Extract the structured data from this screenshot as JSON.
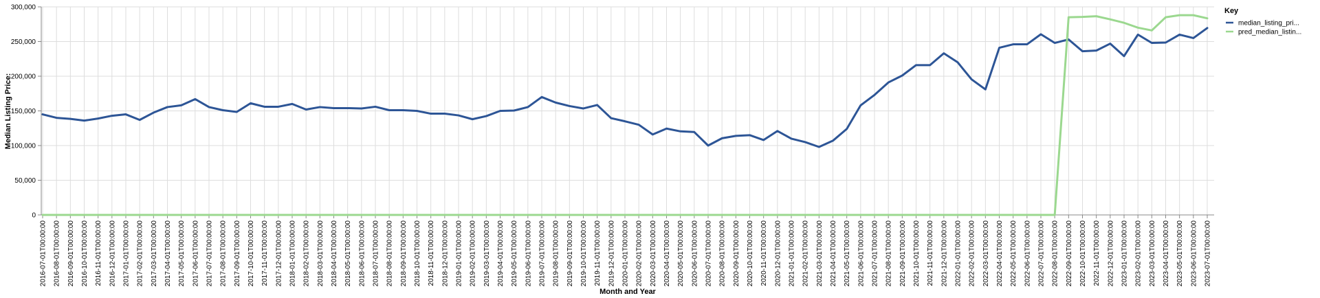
{
  "chart_data": {
    "type": "line",
    "xlabel": "Month and Year",
    "ylabel": "Median Listing Price:",
    "ylim": [
      0,
      300000
    ],
    "y_ticks": [
      "0",
      "50,000",
      "100,000",
      "150,000",
      "200,000",
      "250,000",
      "300,000"
    ],
    "grid": true,
    "legend": {
      "title": "Key",
      "placement": "right"
    },
    "x": [
      "2016-07-01T00:00:00",
      "2016-08-01T00:00:00",
      "2016-09-01T00:00:00",
      "2016-10-01T00:00:00",
      "2016-11-01T00:00:00",
      "2016-12-01T00:00:00",
      "2017-01-01T00:00:00",
      "2017-02-01T00:00:00",
      "2017-03-01T00:00:00",
      "2017-04-01T00:00:00",
      "2017-05-01T00:00:00",
      "2017-06-01T00:00:00",
      "2017-07-01T00:00:00",
      "2017-08-01T00:00:00",
      "2017-09-01T00:00:00",
      "2017-10-01T00:00:00",
      "2017-11-01T00:00:00",
      "2017-12-01T00:00:00",
      "2018-01-01T00:00:00",
      "2018-02-01T00:00:00",
      "2018-03-01T00:00:00",
      "2018-04-01T00:00:00",
      "2018-05-01T00:00:00",
      "2018-06-01T00:00:00",
      "2018-07-01T00:00:00",
      "2018-08-01T00:00:00",
      "2018-09-01T00:00:00",
      "2018-10-01T00:00:00",
      "2018-11-01T00:00:00",
      "2018-12-01T00:00:00",
      "2019-01-01T00:00:00",
      "2019-02-01T00:00:00",
      "2019-03-01T00:00:00",
      "2019-04-01T00:00:00",
      "2019-05-01T00:00:00",
      "2019-06-01T00:00:00",
      "2019-07-01T00:00:00",
      "2019-08-01T00:00:00",
      "2019-09-01T00:00:00",
      "2019-10-01T00:00:00",
      "2019-11-01T00:00:00",
      "2019-12-01T00:00:00",
      "2020-01-01T00:00:00",
      "2020-02-01T00:00:00",
      "2020-03-01T00:00:00",
      "2020-04-01T00:00:00",
      "2020-05-01T00:00:00",
      "2020-06-01T00:00:00",
      "2020-07-01T00:00:00",
      "2020-08-01T00:00:00",
      "2020-09-01T00:00:00",
      "2020-10-01T00:00:00",
      "2020-11-01T00:00:00",
      "2020-12-01T00:00:00",
      "2021-01-01T00:00:00",
      "2021-02-01T00:00:00",
      "2021-03-01T00:00:00",
      "2021-04-01T00:00:00",
      "2021-05-01T00:00:00",
      "2021-06-01T00:00:00",
      "2021-07-01T00:00:00",
      "2021-08-01T00:00:00",
      "2021-09-01T00:00:00",
      "2021-10-01T00:00:00",
      "2021-11-01T00:00:00",
      "2021-12-01T00:00:00",
      "2022-01-01T00:00:00",
      "2022-02-01T00:00:00",
      "2022-03-01T00:00:00",
      "2022-04-01T00:00:00",
      "2022-05-01T00:00:00",
      "2022-06-01T00:00:00",
      "2022-07-01T00:00:00",
      "2022-08-01T00:00:00",
      "2022-09-01T00:00:00",
      "2022-10-01T00:00:00",
      "2022-11-01T00:00:00",
      "2022-12-01T00:00:00",
      "2023-01-01T00:00:00",
      "2023-02-01T00:00:00",
      "2023-03-01T00:00:00",
      "2023-04-01T00:00:00",
      "2023-05-01T00:00:00",
      "2023-06-01T00:00:00",
      "2023-07-01T00:00:00"
    ],
    "series": [
      {
        "name": "median_listing_pri...",
        "color": "#2d5596",
        "values": [
          145000,
          140000,
          138500,
          136000,
          139000,
          143000,
          145000,
          137000,
          147500,
          155500,
          158000,
          167000,
          155500,
          151000,
          148500,
          161000,
          156000,
          156000,
          160000,
          152000,
          155500,
          154000,
          154000,
          153500,
          156000,
          151000,
          151000,
          150000,
          146000,
          146000,
          143500,
          138000,
          142500,
          150000,
          150500,
          155500,
          170000,
          162000,
          157000,
          153500,
          158500,
          139500,
          135000,
          130000,
          116000,
          124500,
          120500,
          119500,
          100000,
          110500,
          114000,
          115000,
          108000,
          121000,
          110000,
          105000,
          98000,
          107000,
          124000,
          158000,
          173000,
          191000,
          201000,
          216000,
          216000,
          233000,
          220000,
          195500,
          181000,
          241000,
          246000,
          246000,
          260500,
          248000,
          253000,
          236000,
          237000,
          247000,
          229000,
          260000,
          248000,
          248500,
          260000,
          255000,
          269500
        ]
      },
      {
        "name": "pred_median_listin...",
        "color": "#9bd88f",
        "values": [
          0,
          0,
          0,
          0,
          0,
          0,
          0,
          0,
          0,
          0,
          0,
          0,
          0,
          0,
          0,
          0,
          0,
          0,
          0,
          0,
          0,
          0,
          0,
          0,
          0,
          0,
          0,
          0,
          0,
          0,
          0,
          0,
          0,
          0,
          0,
          0,
          0,
          0,
          0,
          0,
          0,
          0,
          0,
          0,
          0,
          0,
          0,
          0,
          0,
          0,
          0,
          0,
          0,
          0,
          0,
          0,
          0,
          0,
          0,
          0,
          0,
          0,
          0,
          0,
          0,
          0,
          0,
          0,
          0,
          0,
          0,
          0,
          0,
          0,
          285000,
          285500,
          286500,
          282000,
          277000,
          270000,
          266000,
          285000,
          288000,
          288000,
          283500
        ]
      }
    ]
  }
}
